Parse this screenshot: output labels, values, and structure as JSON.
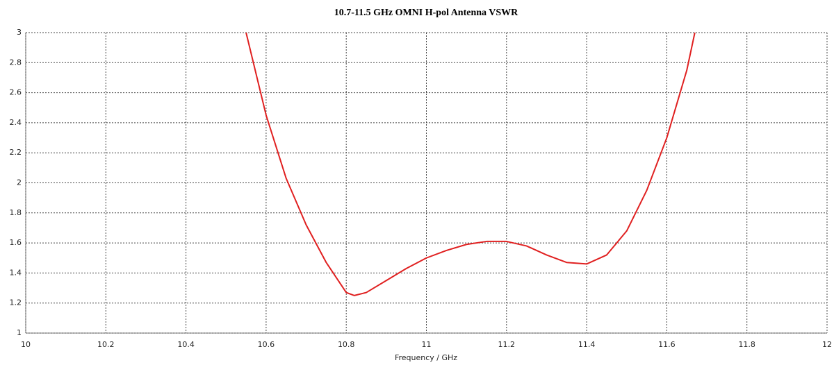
{
  "chart_data": {
    "type": "line",
    "title": "10.7-11.5 GHz OMNI H-pol Antenna VSWR",
    "x_label": "Frequency / GHz",
    "x": [
      10.55,
      10.6,
      10.65,
      10.7,
      10.75,
      10.8,
      10.82,
      10.85,
      10.9,
      10.95,
      11.0,
      11.05,
      11.1,
      11.15,
      11.2,
      11.25,
      11.3,
      11.35,
      11.4,
      11.45,
      11.5,
      11.55,
      11.6,
      11.65,
      11.67
    ],
    "values": [
      3.0,
      2.45,
      2.03,
      1.72,
      1.47,
      1.27,
      1.25,
      1.27,
      1.35,
      1.43,
      1.5,
      1.55,
      1.59,
      1.61,
      1.61,
      1.58,
      1.52,
      1.47,
      1.46,
      1.52,
      1.68,
      1.95,
      2.3,
      2.75,
      3.0
    ],
    "color": "#e02020",
    "xlim": [
      10,
      12
    ],
    "xticks": [
      10,
      10.2,
      10.4,
      10.6,
      10.8,
      11,
      11.2,
      11.4,
      11.6,
      11.8,
      12
    ],
    "ylim": [
      1,
      3
    ],
    "yticks": [
      1,
      1.2,
      1.4,
      1.6,
      1.8,
      2,
      2.2,
      2.4,
      2.6,
      2.8,
      3
    ],
    "grid": true
  }
}
